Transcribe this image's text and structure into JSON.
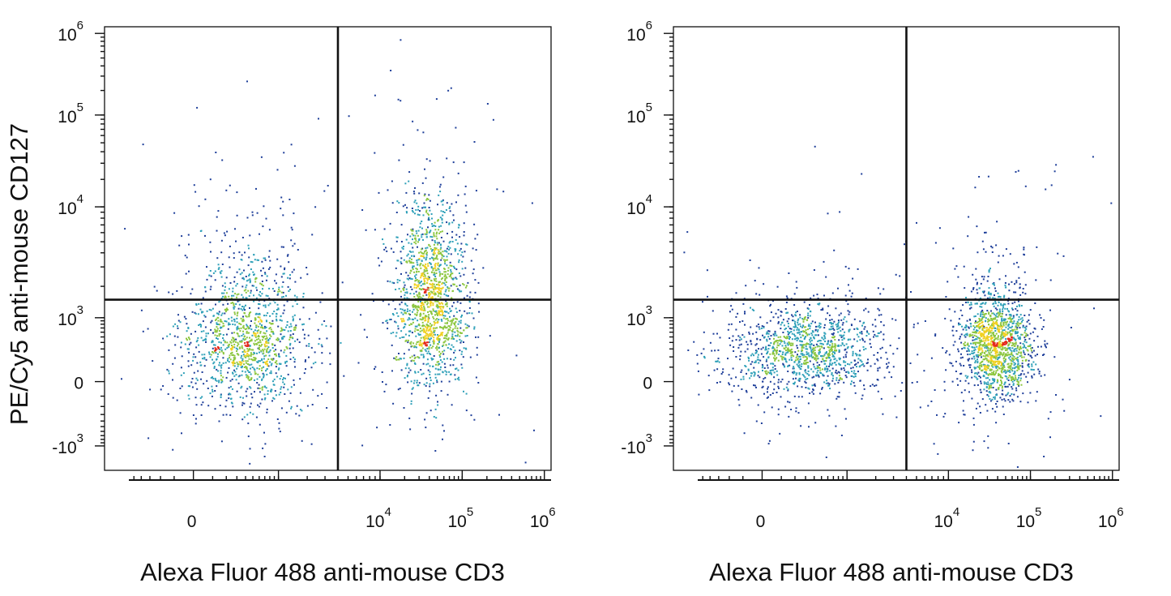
{
  "ylabel": "PE/Cy5 anti-mouse CD127",
  "xlabel": "Alexa Fluor 488 anti-mouse CD3",
  "x_ticks": [
    {
      "value": 0,
      "base": "0",
      "exp": ""
    },
    {
      "value": 10000,
      "base": "10",
      "exp": "4"
    },
    {
      "value": 100000,
      "base": "10",
      "exp": "5"
    },
    {
      "value": 1000000,
      "base": "10",
      "exp": "6"
    }
  ],
  "y_ticks": [
    {
      "value": 1000000,
      "base": "10",
      "exp": "6"
    },
    {
      "value": 100000,
      "base": "10",
      "exp": "5"
    },
    {
      "value": 10000,
      "base": "10",
      "exp": "4"
    },
    {
      "value": 1000,
      "base": "10",
      "exp": "3"
    },
    {
      "value": 0,
      "base": "0",
      "exp": ""
    },
    {
      "value": -1000,
      "base": "-10",
      "exp": "3"
    }
  ],
  "colors": {
    "axis": "#111111",
    "density_low": "#1f3f9a",
    "density_mid_low": "#2ea0b8",
    "density_mid": "#8cc63f",
    "density_mid_high": "#f0d020",
    "density_high": "#e52a1e"
  },
  "chart_data": [
    {
      "type": "scatter",
      "subtype": "flow-cytometry density dot plot",
      "xlabel": "Alexa Fluor 488 anti-mouse CD3",
      "ylabel": "PE/Cy5 anti-mouse CD127",
      "x_scale": "biexponential",
      "y_scale": "biexponential",
      "xlim": [
        -800,
        1000000
      ],
      "ylim": [
        -1500,
        1000000
      ],
      "gate_x": 4000,
      "gate_y": 1500,
      "populations": [
        {
          "center": [
            400,
            500
          ],
          "spread": [
            0.09,
            0.14
          ],
          "count": 1400
        },
        {
          "center": [
            40000,
            1500
          ],
          "spread": [
            0.07,
            0.14
          ],
          "count": 1500
        }
      ],
      "grid": false,
      "legend": "none"
    },
    {
      "type": "scatter",
      "subtype": "flow-cytometry density dot plot",
      "xlabel": "Alexa Fluor 488 anti-mouse CD3",
      "ylabel": "",
      "x_scale": "biexponential",
      "y_scale": "biexponential",
      "xlim": [
        -800,
        1000000
      ],
      "ylim": [
        -1500,
        1000000
      ],
      "gate_x": 4000,
      "gate_y": 1500,
      "populations": [
        {
          "center": [
            300,
            300
          ],
          "spread": [
            0.11,
            0.09
          ],
          "count": 1300
        },
        {
          "center": [
            40000,
            400
          ],
          "spread": [
            0.07,
            0.1
          ],
          "count": 1500
        }
      ],
      "grid": false,
      "legend": "none"
    }
  ]
}
